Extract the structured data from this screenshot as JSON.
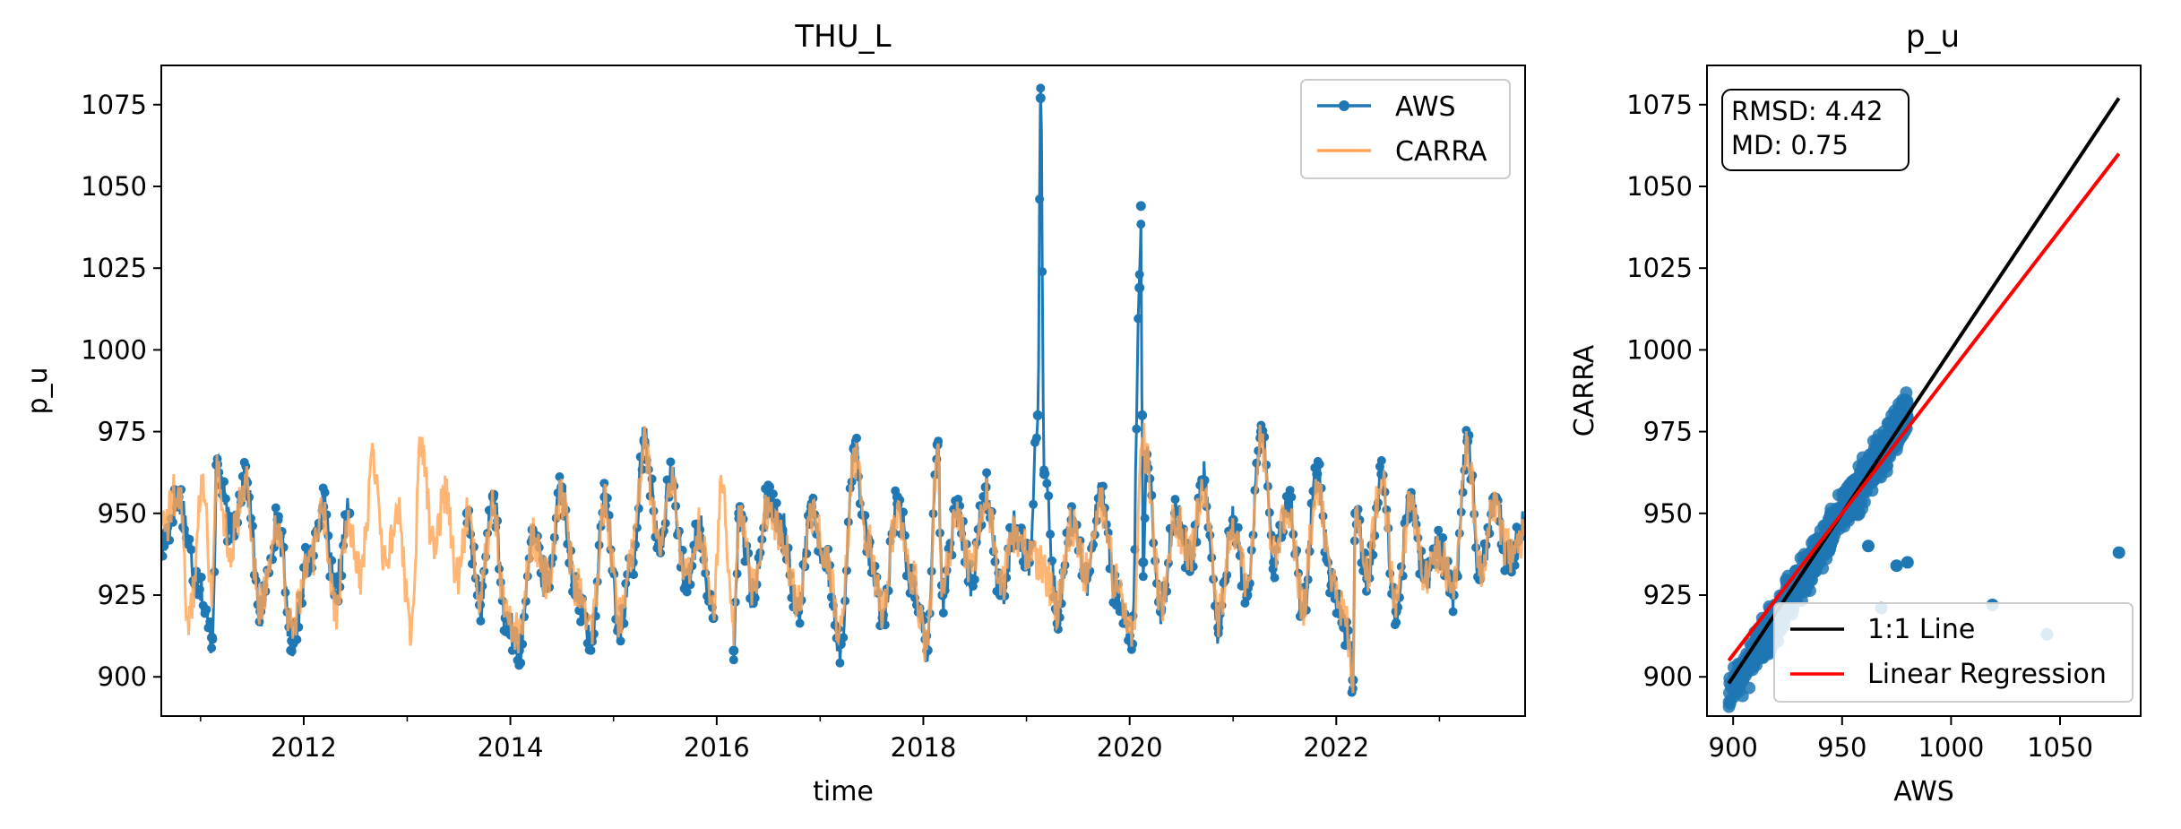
{
  "chart_data": [
    {
      "type": "line",
      "title": "THU_L",
      "xlabel": "time",
      "ylabel": "p_u",
      "xlim": [
        "2010-08-15",
        "2023-10-31"
      ],
      "ylim": [
        888,
        1087
      ],
      "xticks": [
        {
          "label": "2012",
          "date": "2012-01-01"
        },
        {
          "label": "2014",
          "date": "2014-01-01"
        },
        {
          "label": "2016",
          "date": "2016-01-01"
        },
        {
          "label": "2018",
          "date": "2018-01-01"
        },
        {
          "label": "2020",
          "date": "2020-01-01"
        },
        {
          "label": "2022",
          "date": "2022-01-01"
        }
      ],
      "yticks": [
        900,
        925,
        950,
        975,
        1000,
        1025,
        1050,
        1075
      ],
      "grid": false,
      "legend": "top-right",
      "series": [
        {
          "name": "AWS",
          "color": "#1f77b4",
          "marker": "circle",
          "segments": [
            {
              "x": [
                "2010-08-20",
                "2010-10-15",
                "2010-12-20",
                "2011-02-10",
                "2011-03-01",
                "2011-04-15",
                "2011-06-10",
                "2011-08-01",
                "2011-10-01",
                "2011-11-20",
                "2012-01-15",
                "2012-03-10",
                "2012-04-20",
                "2012-06-10"
              ],
              "y": [
                940,
                955,
                930,
                912,
                965,
                945,
                960,
                920,
                948,
                911,
                935,
                952,
                925,
                950
              ]
            },
            {
              "x": [
                "2013-08-01",
                "2013-09-15",
                "2013-11-01",
                "2013-12-15",
                "2014-02-01",
                "2014-03-20",
                "2014-05-10",
                "2014-07-01",
                "2014-08-20",
                "2014-10-15",
                "2014-12-01",
                "2015-01-20",
                "2015-03-10",
                "2015-04-20",
                "2015-06-10",
                "2015-07-25",
                "2015-09-15",
                "2015-11-01",
                "2015-12-20"
              ],
              "y": [
                950,
                922,
                955,
                918,
                908,
                945,
                928,
                958,
                925,
                912,
                955,
                915,
                935,
                972,
                940,
                960,
                928,
                945,
                918
              ]
            },
            {
              "x": [
                "2016-03-01",
                "2016-03-20",
                "2016-05-10",
                "2016-07-01",
                "2016-08-20",
                "2016-10-15",
                "2016-12-01",
                "2017-01-20",
                "2017-03-15",
                "2017-05-01",
                "2017-06-20",
                "2017-08-10",
                "2017-10-01",
                "2017-11-20",
                "2018-01-15",
                "2018-02-20",
                "2018-03-10",
                "2018-05-01",
                "2018-06-20",
                "2018-08-10",
                "2018-10-01",
                "2018-11-20",
                "2019-01-10",
                "2019-02-10",
                "2019-02-20",
                "2019-03-05",
                "2019-04-20",
                "2019-06-10",
                "2019-08-01",
                "2019-09-20",
                "2019-11-15",
                "2020-01-10",
                "2020-02-05",
                "2020-02-10",
                "2020-02-14",
                "2020-02-18",
                "2020-03-01",
                "2020-04-20",
                "2020-06-10",
                "2020-08-01",
                "2020-09-20",
                "2020-11-10",
                "2021-01-01",
                "2021-02-20",
                "2021-04-10",
                "2021-05-25",
                "2021-07-15",
                "2021-09-05",
                "2021-10-25",
                "2021-12-15",
                "2022-02-01",
                "2022-03-01",
                "2022-03-10",
                "2022-04-20",
                "2022-06-10",
                "2022-08-01",
                "2022-09-20",
                "2022-11-10",
                "2023-01-01",
                "2023-02-20",
                "2023-04-10",
                "2023-05-25",
                "2023-07-15",
                "2023-09-01",
                "2023-10-25"
              ],
              "y": [
                908,
                950,
                925,
                955,
                945,
                920,
                952,
                935,
                910,
                970,
                940,
                918,
                955,
                930,
                908,
                971,
                925,
                950,
                930,
                958,
                925,
                945,
                935,
                980,
                1077,
                962,
                920,
                948,
                930,
                955,
                925,
                910,
                1019,
                1044,
                980,
                935,
                968,
                920,
                950,
                935,
                960,
                915,
                948,
                925,
                975,
                935,
                955,
                920,
                962,
                928,
                915,
                899,
                950,
                930,
                962,
                920,
                955,
                930,
                940,
                925,
                972,
                930,
                955,
                935,
                945
              ]
            }
          ]
        },
        {
          "name": "CARRA",
          "color": "#ffa556",
          "marker": "none",
          "x": [
            "2010-08-20",
            "2010-10-15",
            "2010-11-20",
            "2011-01-10",
            "2011-02-10",
            "2011-03-01",
            "2011-04-15",
            "2011-06-10",
            "2011-08-01",
            "2011-10-01",
            "2011-11-20",
            "2012-01-15",
            "2012-03-10",
            "2012-04-20",
            "2012-06-10",
            "2012-07-20",
            "2012-09-01",
            "2012-10-15",
            "2012-12-01",
            "2013-01-15",
            "2013-02-20",
            "2013-04-01",
            "2013-05-15",
            "2013-07-01",
            "2013-08-01",
            "2013-09-15",
            "2013-11-01",
            "2013-12-15",
            "2014-02-01",
            "2014-03-20",
            "2014-05-10",
            "2014-07-01",
            "2014-08-20",
            "2014-10-15",
            "2014-12-01",
            "2015-01-20",
            "2015-03-10",
            "2015-04-20",
            "2015-06-10",
            "2015-07-25",
            "2015-09-15",
            "2015-11-01",
            "2015-12-20",
            "2016-01-20",
            "2016-03-01",
            "2016-03-20",
            "2016-05-10",
            "2016-07-01",
            "2016-08-20",
            "2016-10-15",
            "2016-12-01",
            "2017-01-20",
            "2017-03-15",
            "2017-05-01",
            "2017-06-20",
            "2017-08-10",
            "2017-10-01",
            "2017-11-20",
            "2018-01-15",
            "2018-02-20",
            "2018-03-10",
            "2018-05-01",
            "2018-06-20",
            "2018-08-10",
            "2018-10-01",
            "2018-11-20",
            "2019-01-10",
            "2019-02-20",
            "2019-04-20",
            "2019-06-10",
            "2019-08-01",
            "2019-09-20",
            "2019-11-15",
            "2020-01-10",
            "2020-02-18",
            "2020-03-01",
            "2020-04-20",
            "2020-06-10",
            "2020-08-01",
            "2020-09-20",
            "2020-11-10",
            "2021-01-01",
            "2021-02-20",
            "2021-04-10",
            "2021-05-25",
            "2021-07-15",
            "2021-09-05",
            "2021-10-25",
            "2021-12-15",
            "2022-02-01",
            "2022-03-01",
            "2022-03-10",
            "2022-04-20",
            "2022-06-10",
            "2022-08-01",
            "2022-09-20",
            "2022-11-10",
            "2023-01-01",
            "2023-02-20",
            "2023-04-10",
            "2023-05-25",
            "2023-07-15",
            "2023-09-01",
            "2023-10-25"
          ],
          "y": [
            945,
            958,
            915,
            960,
            925,
            962,
            940,
            958,
            922,
            945,
            915,
            932,
            950,
            920,
            948,
            930,
            965,
            935,
            950,
            913,
            972,
            940,
            955,
            930,
            948,
            925,
            952,
            920,
            912,
            942,
            930,
            955,
            928,
            915,
            952,
            918,
            938,
            970,
            942,
            958,
            930,
            945,
            920,
            962,
            912,
            948,
            928,
            952,
            942,
            922,
            950,
            938,
            912,
            968,
            942,
            920,
            952,
            932,
            910,
            970,
            928,
            948,
            932,
            956,
            928,
            943,
            938,
            935,
            922,
            946,
            932,
            953,
            928,
            912,
            972,
            965,
            922,
            948,
            938,
            958,
            918,
            946,
            928,
            973,
            938,
            953,
            922,
            960,
            930,
            918,
            900,
            948,
            932,
            960,
            922,
            953,
            932,
            938,
            928,
            970,
            932,
            953,
            938,
            943
          ]
        }
      ]
    },
    {
      "type": "scatter",
      "title": "p_u",
      "xlabel": "AWS",
      "ylabel": "CARRA",
      "xlim": [
        888,
        1087
      ],
      "ylim": [
        888,
        1087
      ],
      "xticks": [
        900,
        950,
        1000,
        1050
      ],
      "yticks": [
        900,
        925,
        950,
        975,
        1000,
        1025,
        1050,
        1075
      ],
      "grid": false,
      "legend": "bottom-right",
      "stats": {
        "rmsd": "RMSD: 4.42",
        "md": "MD: 0.75"
      },
      "points_color": "#1f77b4",
      "cluster": {
        "x_range": [
          898,
          980
        ],
        "slope": 1.05,
        "intercept": -48
      },
      "outliers": [
        {
          "x": 1077,
          "y": 938
        },
        {
          "x": 1044,
          "y": 913
        },
        {
          "x": 1019,
          "y": 922
        },
        {
          "x": 980,
          "y": 935
        },
        {
          "x": 975,
          "y": 934
        },
        {
          "x": 962,
          "y": 940
        },
        {
          "x": 968,
          "y": 921
        }
      ],
      "series": [
        {
          "name": "1:1 Line",
          "color": "#000000",
          "x": [
            898,
            1077
          ],
          "y": [
            898,
            1077
          ]
        },
        {
          "name": "Linear Regression",
          "color": "#ff0000",
          "x": [
            898,
            1077
          ],
          "y": [
            905,
            1060
          ]
        }
      ]
    }
  ]
}
